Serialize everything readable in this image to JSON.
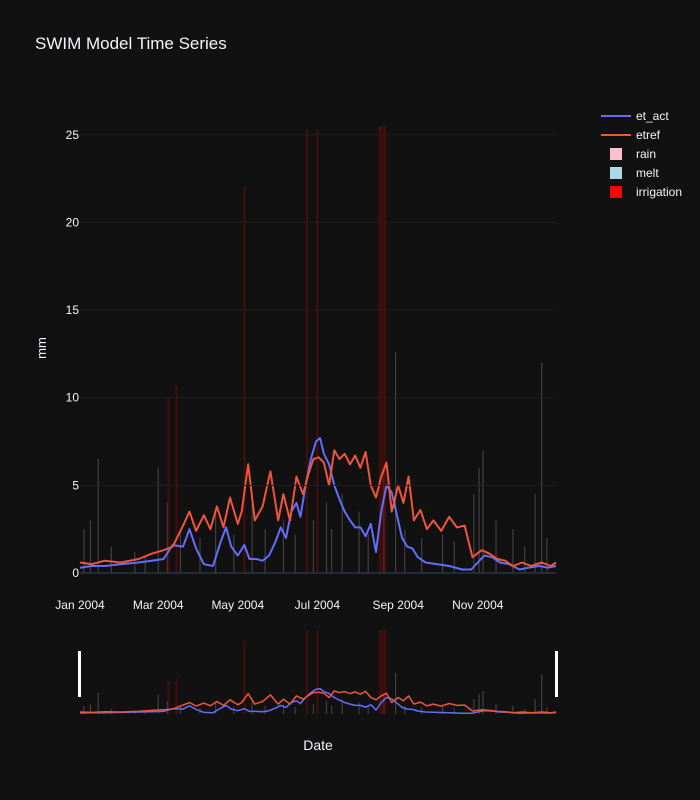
{
  "chart_data": {
    "type": "line",
    "title": "SWIM Model Time Series",
    "xlabel": "Date",
    "ylabel": "mm",
    "x_ticks": [
      "Jan 2004",
      "Mar 2004",
      "May 2004",
      "Jul 2004",
      "Sep 2004",
      "Nov 2004"
    ],
    "y_ticks": [
      "0",
      "5",
      "10",
      "15",
      "20",
      "25"
    ],
    "ylim": [
      0,
      25.5
    ],
    "xlim": [
      "2004-01-01",
      "2004-12-31"
    ],
    "legend_position": "top-right",
    "rangeslider": true,
    "series": [
      {
        "name": "et_act",
        "kind": "line",
        "color": "#636efa",
        "points": [
          [
            "2004-01-01",
            0.3
          ],
          [
            "2004-01-10",
            0.4
          ],
          [
            "2004-01-20",
            0.4
          ],
          [
            "2004-02-01",
            0.5
          ],
          [
            "2004-02-15",
            0.6
          ],
          [
            "2004-02-25",
            0.7
          ],
          [
            "2004-03-05",
            0.8
          ],
          [
            "2004-03-12",
            1.6
          ],
          [
            "2004-03-20",
            1.5
          ],
          [
            "2004-03-25",
            2.5
          ],
          [
            "2004-03-30",
            1.4
          ],
          [
            "2004-04-05",
            0.5
          ],
          [
            "2004-04-12",
            0.4
          ],
          [
            "2004-04-18",
            1.8
          ],
          [
            "2004-04-22",
            2.6
          ],
          [
            "2004-04-26",
            1.5
          ],
          [
            "2004-05-01",
            1.0
          ],
          [
            "2004-05-06",
            1.6
          ],
          [
            "2004-05-10",
            0.8
          ],
          [
            "2004-05-15",
            0.8
          ],
          [
            "2004-05-20",
            0.7
          ],
          [
            "2004-05-25",
            1.0
          ],
          [
            "2004-05-30",
            1.8
          ],
          [
            "2004-06-03",
            2.6
          ],
          [
            "2004-06-07",
            2.0
          ],
          [
            "2004-06-11",
            3.5
          ],
          [
            "2004-06-15",
            4.0
          ],
          [
            "2004-06-18",
            3.2
          ],
          [
            "2004-06-22",
            5.0
          ],
          [
            "2004-06-26",
            6.5
          ],
          [
            "2004-06-30",
            7.5
          ],
          [
            "2004-07-03",
            7.7
          ],
          [
            "2004-07-06",
            6.8
          ],
          [
            "2004-07-10",
            6.2
          ],
          [
            "2004-07-14",
            5.0
          ],
          [
            "2004-07-18",
            4.2
          ],
          [
            "2004-07-22",
            3.5
          ],
          [
            "2004-07-26",
            3.0
          ],
          [
            "2004-07-30",
            2.6
          ],
          [
            "2004-08-03",
            2.6
          ],
          [
            "2004-08-07",
            2.1
          ],
          [
            "2004-08-11",
            2.8
          ],
          [
            "2004-08-15",
            1.2
          ],
          [
            "2004-08-19",
            3.5
          ],
          [
            "2004-08-23",
            5.0
          ],
          [
            "2004-08-27",
            4.6
          ],
          [
            "2004-08-31",
            3.3
          ],
          [
            "2004-09-04",
            2.0
          ],
          [
            "2004-09-08",
            1.5
          ],
          [
            "2004-09-12",
            1.4
          ],
          [
            "2004-09-16",
            0.9
          ],
          [
            "2004-09-22",
            0.6
          ],
          [
            "2004-10-01",
            0.5
          ],
          [
            "2004-10-10",
            0.4
          ],
          [
            "2004-10-20",
            0.2
          ],
          [
            "2004-10-27",
            0.2
          ],
          [
            "2004-11-01",
            0.6
          ],
          [
            "2004-11-06",
            1.0
          ],
          [
            "2004-11-12",
            0.9
          ],
          [
            "2004-11-18",
            0.6
          ],
          [
            "2004-11-25",
            0.5
          ],
          [
            "2004-12-03",
            0.2
          ],
          [
            "2004-12-10",
            0.3
          ],
          [
            "2004-12-18",
            0.4
          ],
          [
            "2004-12-25",
            0.3
          ],
          [
            "2004-12-31",
            0.4
          ]
        ]
      },
      {
        "name": "etref",
        "kind": "line",
        "color": "#ef553b",
        "points": [
          [
            "2004-01-01",
            0.6
          ],
          [
            "2004-01-10",
            0.5
          ],
          [
            "2004-01-20",
            0.7
          ],
          [
            "2004-02-01",
            0.6
          ],
          [
            "2004-02-15",
            0.8
          ],
          [
            "2004-02-25",
            1.1
          ],
          [
            "2004-03-05",
            1.3
          ],
          [
            "2004-03-12",
            1.5
          ],
          [
            "2004-03-20",
            2.7
          ],
          [
            "2004-03-25",
            3.5
          ],
          [
            "2004-03-30",
            2.4
          ],
          [
            "2004-04-05",
            3.3
          ],
          [
            "2004-04-10",
            2.5
          ],
          [
            "2004-04-15",
            3.8
          ],
          [
            "2004-04-20",
            2.6
          ],
          [
            "2004-04-25",
            4.3
          ],
          [
            "2004-05-01",
            2.8
          ],
          [
            "2004-05-04",
            3.5
          ],
          [
            "2004-05-09",
            6.2
          ],
          [
            "2004-05-14",
            3.0
          ],
          [
            "2004-05-20",
            3.8
          ],
          [
            "2004-05-26",
            5.8
          ],
          [
            "2004-06-01",
            3.0
          ],
          [
            "2004-06-05",
            4.5
          ],
          [
            "2004-06-10",
            3.0
          ],
          [
            "2004-06-15",
            5.5
          ],
          [
            "2004-06-20",
            4.5
          ],
          [
            "2004-06-24",
            5.6
          ],
          [
            "2004-06-28",
            6.5
          ],
          [
            "2004-07-02",
            6.6
          ],
          [
            "2004-07-06",
            6.3
          ],
          [
            "2004-07-10",
            5.0
          ],
          [
            "2004-07-14",
            7.0
          ],
          [
            "2004-07-18",
            6.5
          ],
          [
            "2004-07-22",
            6.8
          ],
          [
            "2004-07-26",
            6.2
          ],
          [
            "2004-07-30",
            6.7
          ],
          [
            "2004-08-03",
            6.0
          ],
          [
            "2004-08-07",
            6.9
          ],
          [
            "2004-08-11",
            5.0
          ],
          [
            "2004-08-15",
            4.3
          ],
          [
            "2004-08-19",
            5.5
          ],
          [
            "2004-08-23",
            6.3
          ],
          [
            "2004-08-27",
            3.5
          ],
          [
            "2004-09-01",
            5.0
          ],
          [
            "2004-09-05",
            4.0
          ],
          [
            "2004-09-09",
            5.5
          ],
          [
            "2004-09-13",
            3.0
          ],
          [
            "2004-09-18",
            3.6
          ],
          [
            "2004-09-23",
            2.5
          ],
          [
            "2004-09-28",
            3.0
          ],
          [
            "2004-10-04",
            2.4
          ],
          [
            "2004-10-10",
            3.2
          ],
          [
            "2004-10-16",
            2.6
          ],
          [
            "2004-10-22",
            2.7
          ],
          [
            "2004-10-28",
            0.9
          ],
          [
            "2004-11-04",
            1.3
          ],
          [
            "2004-11-10",
            1.1
          ],
          [
            "2004-11-16",
            0.8
          ],
          [
            "2004-11-22",
            0.7
          ],
          [
            "2004-11-28",
            0.4
          ],
          [
            "2004-12-05",
            0.6
          ],
          [
            "2004-12-12",
            0.4
          ],
          [
            "2004-12-20",
            0.6
          ],
          [
            "2004-12-27",
            0.4
          ],
          [
            "2004-12-31",
            0.6
          ]
        ]
      },
      {
        "name": "rain",
        "kind": "bar",
        "color": "#ffc0cb",
        "points": [
          [
            "2004-01-04",
            2.5
          ],
          [
            "2004-01-09",
            3.0
          ],
          [
            "2004-01-15",
            6.5
          ],
          [
            "2004-01-25",
            1.5
          ],
          [
            "2004-02-12",
            1.2
          ],
          [
            "2004-02-20",
            1.0
          ],
          [
            "2004-03-01",
            6.0
          ],
          [
            "2004-03-08",
            4.0
          ],
          [
            "2004-03-18",
            2.5
          ],
          [
            "2004-04-02",
            2.0
          ],
          [
            "2004-04-14",
            3.5
          ],
          [
            "2004-04-28",
            2.2
          ],
          [
            "2004-05-12",
            4.5
          ],
          [
            "2004-05-22",
            2.5
          ],
          [
            "2004-06-05",
            3.0
          ],
          [
            "2004-06-14",
            2.2
          ],
          [
            "2004-06-28",
            3.0
          ],
          [
            "2004-07-08",
            4.0
          ],
          [
            "2004-07-12",
            2.5
          ],
          [
            "2004-07-20",
            4.5
          ],
          [
            "2004-08-02",
            3.5
          ],
          [
            "2004-08-09",
            2.2
          ],
          [
            "2004-08-21",
            6.0
          ],
          [
            "2004-08-30",
            12.6
          ],
          [
            "2004-09-06",
            2.5
          ],
          [
            "2004-09-19",
            2.0
          ],
          [
            "2004-10-05",
            2.2
          ],
          [
            "2004-10-14",
            1.8
          ],
          [
            "2004-10-29",
            4.5
          ],
          [
            "2004-11-02",
            6.0
          ],
          [
            "2004-11-05",
            7.0
          ],
          [
            "2004-11-15",
            3.0
          ],
          [
            "2004-11-28",
            2.5
          ],
          [
            "2004-12-07",
            1.5
          ],
          [
            "2004-12-15",
            4.5
          ],
          [
            "2004-12-20",
            12.0
          ],
          [
            "2004-12-24",
            2.0
          ]
        ]
      },
      {
        "name": "melt",
        "kind": "bar",
        "color": "#add8e6",
        "points": []
      },
      {
        "name": "irrigation",
        "kind": "bar",
        "color": "#ff0000",
        "points": [
          [
            "2004-03-09",
            10.0
          ],
          [
            "2004-03-15",
            10.7
          ],
          [
            "2004-05-06",
            22.0
          ],
          [
            "2004-06-23",
            25.3
          ],
          [
            "2004-07-01",
            25.3
          ],
          [
            "2004-08-18",
            25.5
          ],
          [
            "2004-08-20",
            25.5
          ],
          [
            "2004-08-22",
            25.5
          ]
        ]
      }
    ]
  }
}
